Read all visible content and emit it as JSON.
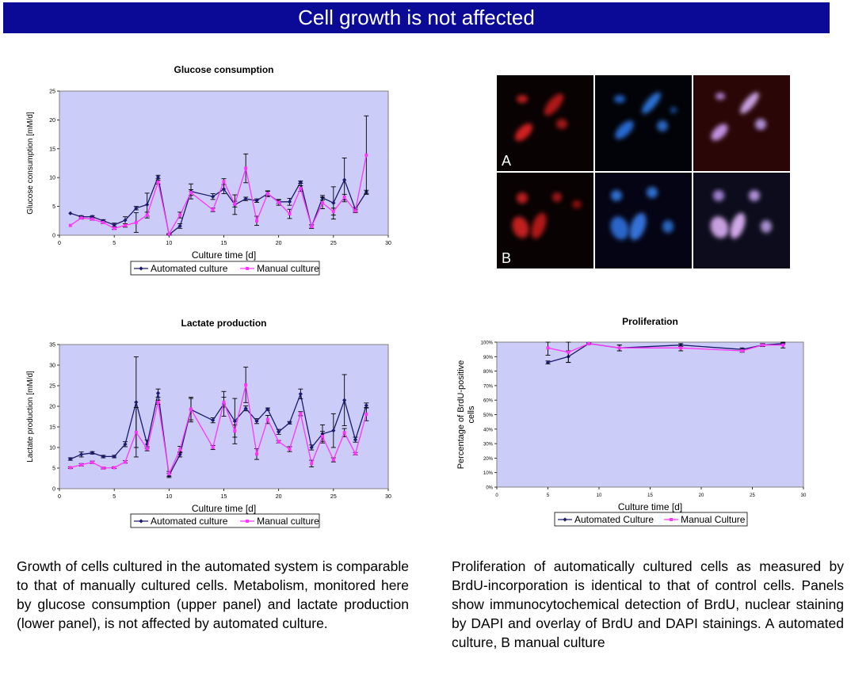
{
  "page_title": "Cell growth is not affected",
  "micrograph": {
    "label_a": "A",
    "label_b": "B"
  },
  "captions": {
    "left": "Growth of cells cultured in the automated system is comparable to that of manually cultured cells. Metabolism, monitored here by glucose consumption (upper panel) and lactate production (lower panel), is not affected by automated culture.",
    "right": "Proliferation of automatically cultured cells as measured by BrdU-incorporation is identical to that of control cells. Panels show immunocytochemical detection of BrdU, nuclear staining by DAPI and overlay of BrdU and DAPI stainings. A automated culture, B manual culture"
  },
  "colors": {
    "plot_bg": "#ccccf8",
    "automated": "#1a1a6e",
    "manual": "#ff33ff",
    "title_bar": "#0a0a96"
  },
  "chart_data": [
    {
      "type": "line",
      "title": "Glucose consumption",
      "xlabel": "Culture time [d]",
      "ylabel": "Glucose consumption [mM/d]",
      "xlim": [
        0,
        30
      ],
      "ylim": [
        0,
        25
      ],
      "xticks": [
        0,
        5,
        10,
        15,
        20,
        25,
        30
      ],
      "yticks": [
        0,
        5,
        10,
        15,
        20,
        25
      ],
      "grid": false,
      "legend_position": "bottom",
      "series": [
        {
          "name": "Automated culture",
          "x": [
            1,
            2,
            3,
            4,
            5,
            6,
            7,
            8,
            9,
            10,
            11,
            12,
            14,
            15,
            16,
            17,
            18,
            19,
            20,
            21,
            22,
            23,
            24,
            25,
            26,
            27,
            28
          ],
          "y": [
            3.8,
            3.2,
            3.2,
            2.5,
            1.8,
            2.6,
            4.7,
            5.3,
            10.1,
            0.1,
            1.6,
            7.6,
            6.7,
            8.0,
            5.3,
            6.3,
            6.0,
            7.2,
            5.8,
            5.8,
            9.2,
            1.5,
            6.5,
            5.6,
            9.6,
            4.5,
            7.5
          ],
          "err": [
            0,
            0.2,
            0.2,
            0.2,
            0.3,
            0.6,
            0.3,
            2,
            0.3,
            0.1,
            0.4,
            1.3,
            0.5,
            0.8,
            1.7,
            0.3,
            0.3,
            0.4,
            0.3,
            0.6,
            0.2,
            0.3,
            0.4,
            2.8,
            3.8,
            0.3,
            0.3
          ]
        },
        {
          "name": "Manual culture",
          "x": [
            1,
            2,
            3,
            4,
            5,
            6,
            7,
            8,
            9,
            10,
            11,
            12,
            14,
            15,
            16,
            17,
            18,
            19,
            20,
            21,
            22,
            23,
            24,
            25,
            26,
            27,
            28
          ],
          "y": [
            1.7,
            3.0,
            2.8,
            2.2,
            1.2,
            1.7,
            2.2,
            3.5,
            9.2,
            0.2,
            3.5,
            7.4,
            4.4,
            9.3,
            5.4,
            11.6,
            2.5,
            7.2,
            5.7,
            3.7,
            8.1,
            1.5,
            5.6,
            4.1,
            6.6,
            4.2,
            13.9
          ],
          "err": [
            0,
            0.2,
            0.2,
            0.2,
            0.2,
            0.3,
            1.7,
            0.5,
            0.3,
            0.1,
            0.5,
            0.5,
            0.3,
            0.5,
            0.5,
            2.5,
            0.8,
            0.5,
            0.5,
            0.8,
            0.5,
            0.3,
            1,
            0.6,
            0.5,
            0.3,
            6.8
          ]
        }
      ]
    },
    {
      "type": "line",
      "title": "Lactate production",
      "xlabel": "Culture time [d]",
      "ylabel": "Lactate production [mM/d]",
      "xlim": [
        0,
        30
      ],
      "ylim": [
        0,
        35
      ],
      "xticks": [
        0,
        5,
        10,
        15,
        20,
        25,
        30
      ],
      "yticks": [
        0,
        5,
        10,
        15,
        20,
        25,
        30,
        35
      ],
      "grid": false,
      "legend_position": "bottom",
      "series": [
        {
          "name": "Automated culture",
          "x": [
            1,
            2,
            3,
            4,
            5,
            6,
            7,
            8,
            9,
            10,
            11,
            12,
            14,
            15,
            16,
            17,
            18,
            19,
            20,
            21,
            22,
            23,
            24,
            25,
            26,
            27,
            28
          ],
          "y": [
            7.2,
            8.3,
            8.7,
            7.8,
            7.8,
            10.8,
            21.0,
            10.8,
            23.2,
            3.2,
            8.3,
            19.2,
            16.6,
            20.6,
            16.4,
            19.5,
            16.4,
            19.3,
            13.8,
            16.0,
            23.0,
            10.0,
            13.3,
            14.1,
            21.5,
            11.9,
            20.2
          ],
          "err": [
            0.3,
            0.6,
            0.3,
            0.3,
            0.3,
            0.6,
            11,
            1,
            1,
            0.5,
            0.6,
            3,
            0.6,
            3,
            5.5,
            0.6,
            0.6,
            0.3,
            0.6,
            0.3,
            1.2,
            0.6,
            2.2,
            4.1,
            6.2,
            0.6,
            0.6
          ]
        },
        {
          "name": "Manual culture",
          "x": [
            1,
            2,
            3,
            4,
            5,
            6,
            7,
            8,
            9,
            10,
            11,
            12,
            14,
            15,
            16,
            17,
            18,
            19,
            20,
            21,
            22,
            23,
            24,
            25,
            26,
            27,
            28
          ],
          "y": [
            5.1,
            5.8,
            6.4,
            5.0,
            5.1,
            6.5,
            13.7,
            9.7,
            21.0,
            3.6,
            9.5,
            19.3,
            10.0,
            21.0,
            14.0,
            25.2,
            8.4,
            16.8,
            11.4,
            9.6,
            18.2,
            6.1,
            12.7,
            7.0,
            13.6,
            8.5,
            18.1
          ],
          "err": [
            0.2,
            0.3,
            0.3,
            0.2,
            0.2,
            0.3,
            6,
            0.5,
            0.5,
            0.6,
            0.8,
            2.6,
            0.5,
            1.2,
            1.5,
            4.3,
            1.3,
            1,
            0.3,
            0.6,
            0.5,
            0.8,
            1.2,
            0.5,
            1,
            0.3,
            1.6
          ]
        }
      ]
    },
    {
      "type": "line",
      "title": "Proliferation",
      "xlabel": "Culture time [d]",
      "ylabel": "Percentage of BrdU-positive cells",
      "xlim": [
        0,
        30
      ],
      "ylim": [
        0,
        100
      ],
      "y_unit": "%",
      "xticks": [
        0,
        5,
        10,
        15,
        20,
        25,
        30
      ],
      "yticks": [
        0,
        10,
        20,
        30,
        40,
        50,
        60,
        70,
        80,
        90,
        100
      ],
      "grid": false,
      "legend_position": "bottom",
      "series": [
        {
          "name": "Automated Culture",
          "x": [
            5,
            7,
            9,
            12,
            18,
            24,
            26,
            28
          ],
          "y": [
            86,
            90,
            99,
            96,
            98,
            95,
            98,
            99
          ],
          "err": [
            1,
            4,
            0.5,
            2,
            1,
            1,
            1,
            0.5
          ]
        },
        {
          "name": "Manual Culture",
          "x": [
            5,
            7,
            9,
            12,
            18,
            24,
            26,
            28
          ],
          "y": [
            96,
            93,
            99,
            96,
            96,
            94,
            98,
            98
          ],
          "err": [
            5,
            7,
            0.5,
            2,
            2,
            1,
            1,
            2
          ]
        }
      ]
    }
  ]
}
